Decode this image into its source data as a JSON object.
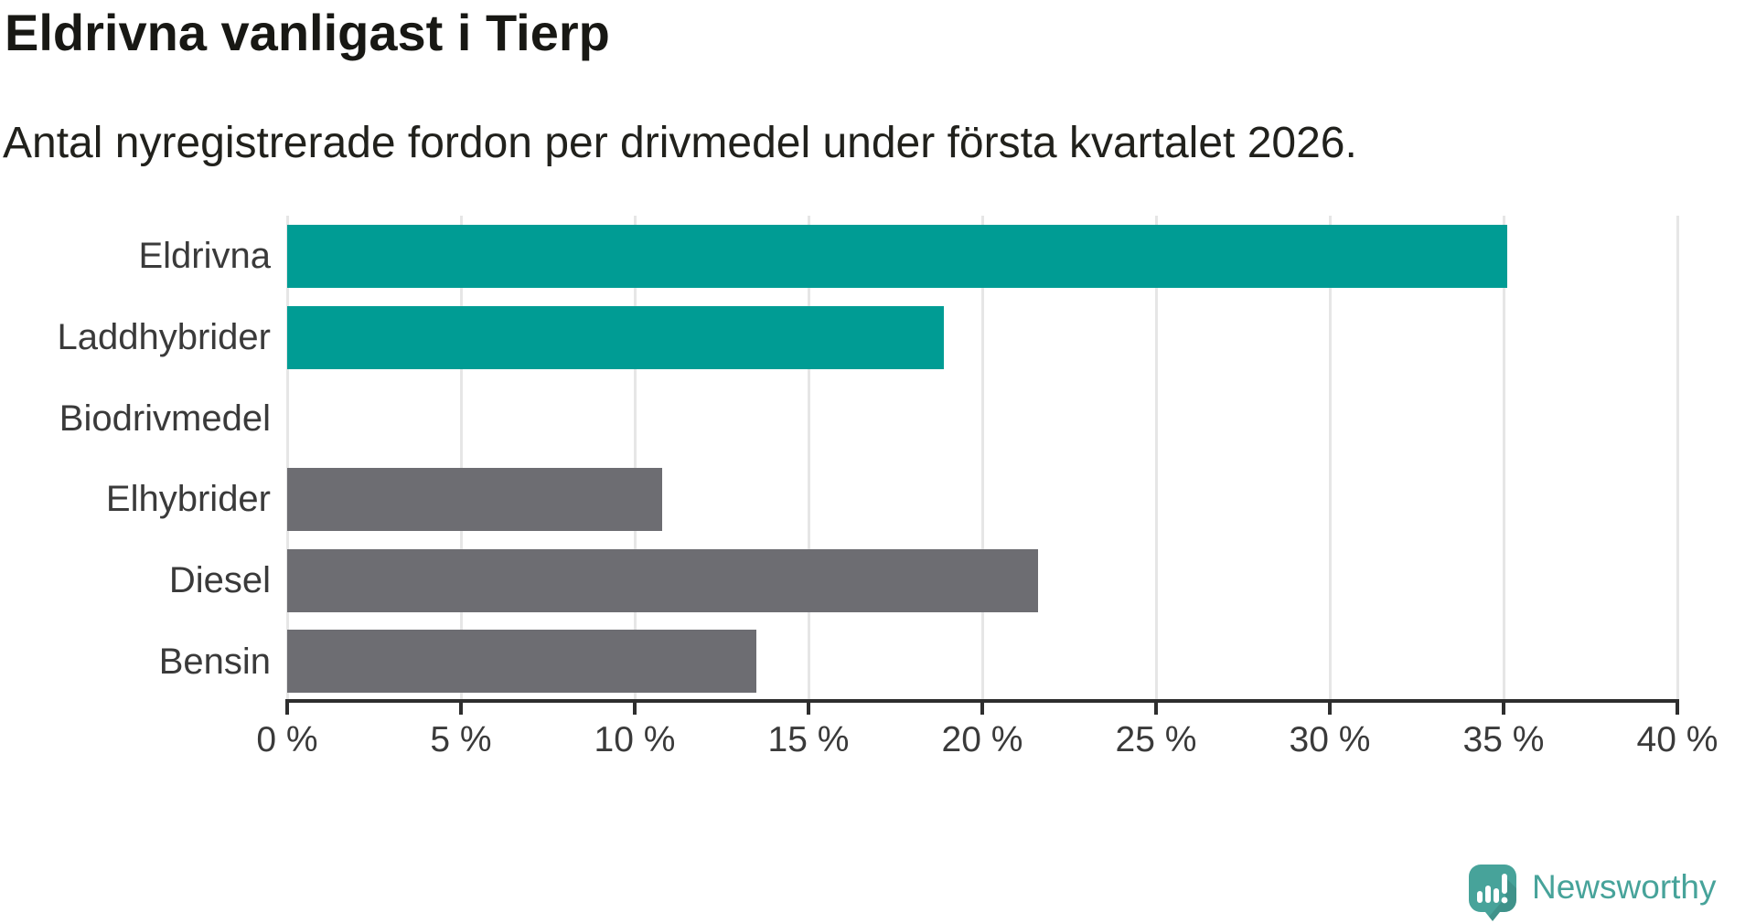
{
  "chart_data": {
    "type": "bar",
    "orientation": "horizontal",
    "title": "Eldrivna vanligast i Tierp",
    "subtitle": "Antal nyregistrerade fordon per drivmedel under första kvartalet 2026.",
    "categories": [
      "Eldrivna",
      "Laddhybrider",
      "Biodrivmedel",
      "Elhybrider",
      "Diesel",
      "Bensin"
    ],
    "values": [
      35.1,
      18.9,
      0,
      10.8,
      21.6,
      13.5
    ],
    "unit": "%",
    "bar_colors": [
      "#009c94",
      "#009c94",
      "#6d6d72",
      "#6d6d72",
      "#6d6d72",
      "#6d6d72"
    ],
    "xlabel": "",
    "ylabel": "",
    "xlim": [
      0,
      40
    ],
    "x_ticks": [
      0,
      5,
      10,
      15,
      20,
      25,
      30,
      35,
      40
    ],
    "x_tick_labels": [
      "0 %",
      "5 %",
      "10 %",
      "15 %",
      "20 %",
      "25 %",
      "30 %",
      "35 %",
      "40 %"
    ],
    "grid": "vertical-on",
    "legend": "none"
  },
  "branding": {
    "logo_text": "Newsworthy",
    "logo_color": "#47a39a"
  },
  "colors": {
    "teal_bar": "#009c94",
    "gray_bar": "#6d6d72",
    "gridline": "#e6e6e6",
    "axis": "#2e2e2e",
    "label_text": "#3a3a3a"
  }
}
